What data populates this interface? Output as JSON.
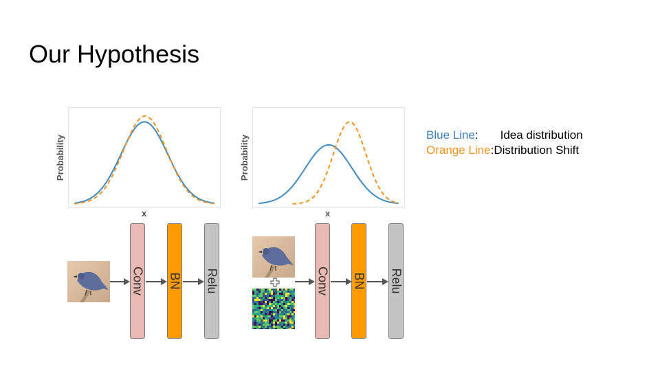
{
  "slide": {
    "title": "Our Hypothesis"
  },
  "legend": {
    "blue_label": "Blue Line",
    "blue_sep": ":",
    "blue_desc": "Idea distribution",
    "orange_label": "Orange Line",
    "orange_sep": ":",
    "orange_desc": "Distribution Shift",
    "blue_color": "#3d7dbf",
    "orange_color": "#f5921e"
  },
  "chart_data": [
    {
      "type": "line",
      "xlabel": "x",
      "ylabel": "Probability",
      "series": [
        {
          "mean": 0,
          "std": 1,
          "peak": 1.0,
          "color": "#3d8bc0",
          "style": "solid"
        },
        {
          "mean": 0.03,
          "std": 0.93,
          "peak": 1.07,
          "color": "#f5921e",
          "style": "dashed"
        }
      ],
      "xlim": [
        -3,
        3
      ],
      "ylim": [
        0,
        1.12
      ]
    },
    {
      "type": "line",
      "xlabel": "x",
      "ylabel": "Probability",
      "series": [
        {
          "mean": 0,
          "std": 1,
          "peak": 0.72,
          "color": "#3d8bc0",
          "style": "solid"
        },
        {
          "mean": 0.9,
          "std": 0.7,
          "peak": 1.0,
          "color": "#f5921e",
          "style": "dashed"
        }
      ],
      "xlim": [
        -3,
        3
      ],
      "ylim": [
        0,
        1.12
      ]
    }
  ],
  "pipelines": [
    {
      "input": [
        "bird-image"
      ],
      "layers": [
        "Conv",
        "BN",
        "Relu"
      ]
    },
    {
      "input": [
        "bird-image",
        "plus-icon",
        "noise-image"
      ],
      "layers": [
        "Conv",
        "BN",
        "Relu"
      ]
    }
  ]
}
